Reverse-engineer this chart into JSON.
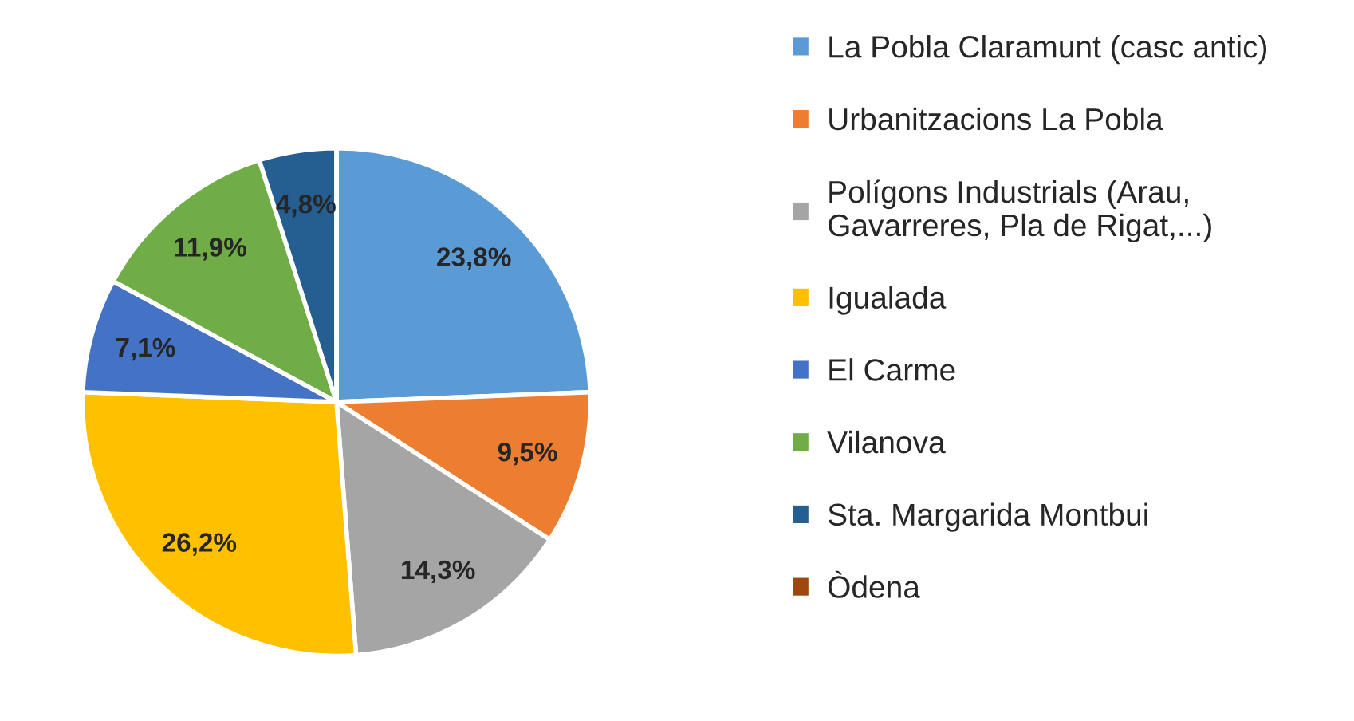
{
  "chart_data": {
    "type": "pie",
    "categories": [
      "La Pobla Claramunt (casc antic)",
      "Urbanitzacions La Pobla",
      "Polígons Industrials (Arau,\nGavarreres, Pla de Rigat,...)",
      "Igualada",
      "El Carme",
      "Vilanova",
      "Sta. Margarida Montbui",
      "Òdena"
    ],
    "values": [
      23.8,
      9.5,
      14.3,
      26.2,
      7.1,
      11.9,
      4.8,
      0
    ],
    "value_labels": [
      "23,8%",
      "9,5%",
      "14,3%",
      "26,2%",
      "7,1%",
      "11,9%",
      "4,8%",
      null
    ],
    "colors": [
      "#5b9bd5",
      "#ed7d31",
      "#a5a5a5",
      "#ffc000",
      "#4472c4",
      "#70ad47",
      "#255e91",
      "#9e480e"
    ],
    "legend": "right"
  }
}
